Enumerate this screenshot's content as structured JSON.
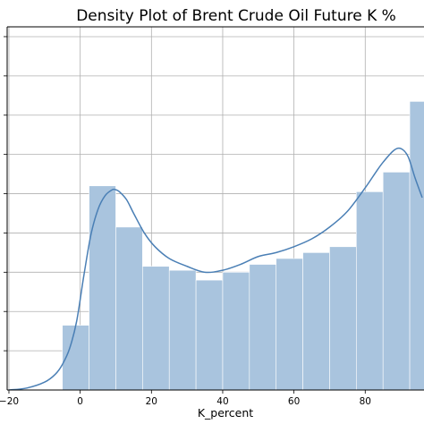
{
  "chart_data": {
    "type": "bar",
    "title": "Density Plot of Brent Crude Oil Future K %",
    "xlabel": "K_percent",
    "ylabel": "",
    "xlim": [
      -20.5,
      96.5
    ],
    "ylim": [
      0,
      0.0185
    ],
    "x_ticks": [
      -20,
      0,
      20,
      40,
      60,
      80
    ],
    "x_tick_labels": [
      "−20",
      "0",
      "20",
      "40",
      "60",
      "80"
    ],
    "y_tick_values": [
      0.002,
      0.004,
      0.006,
      0.008,
      0.01,
      0.012,
      0.014,
      0.016,
      0.018
    ],
    "grid": true,
    "bar_color": "#a9c4de",
    "line_color": "#4a7fb5",
    "histogram": {
      "bin_edges": [
        -5,
        2.5,
        10,
        17.5,
        25,
        32.5,
        40,
        47.5,
        55,
        62.5,
        70,
        77.5,
        85,
        92.5,
        100
      ],
      "densities": [
        0.0033,
        0.0104,
        0.0083,
        0.0063,
        0.0061,
        0.0056,
        0.006,
        0.0064,
        0.0067,
        0.007,
        0.0073,
        0.0101,
        0.0111,
        0.0147
      ]
    },
    "kde": {
      "x": [
        -20,
        -15,
        -10,
        -7,
        -5,
        -3,
        -1,
        1,
        3,
        5,
        7,
        9,
        10,
        11,
        13,
        15,
        18,
        21,
        25,
        30,
        35,
        40,
        45,
        50,
        55,
        60,
        65,
        70,
        75,
        80,
        83,
        85,
        88,
        90,
        92,
        94,
        96
      ],
      "y": [
        0,
        0.0001,
        0.0004,
        0.0008,
        0.0013,
        0.0021,
        0.0035,
        0.0058,
        0.0079,
        0.0092,
        0.0099,
        0.0102,
        0.0102,
        0.0101,
        0.0097,
        0.009,
        0.008,
        0.0073,
        0.0067,
        0.0063,
        0.006,
        0.0061,
        0.0064,
        0.0068,
        0.007,
        0.0073,
        0.0077,
        0.0083,
        0.0091,
        0.0103,
        0.0111,
        0.0116,
        0.0122,
        0.0123,
        0.0119,
        0.0108,
        0.0098
      ]
    }
  }
}
